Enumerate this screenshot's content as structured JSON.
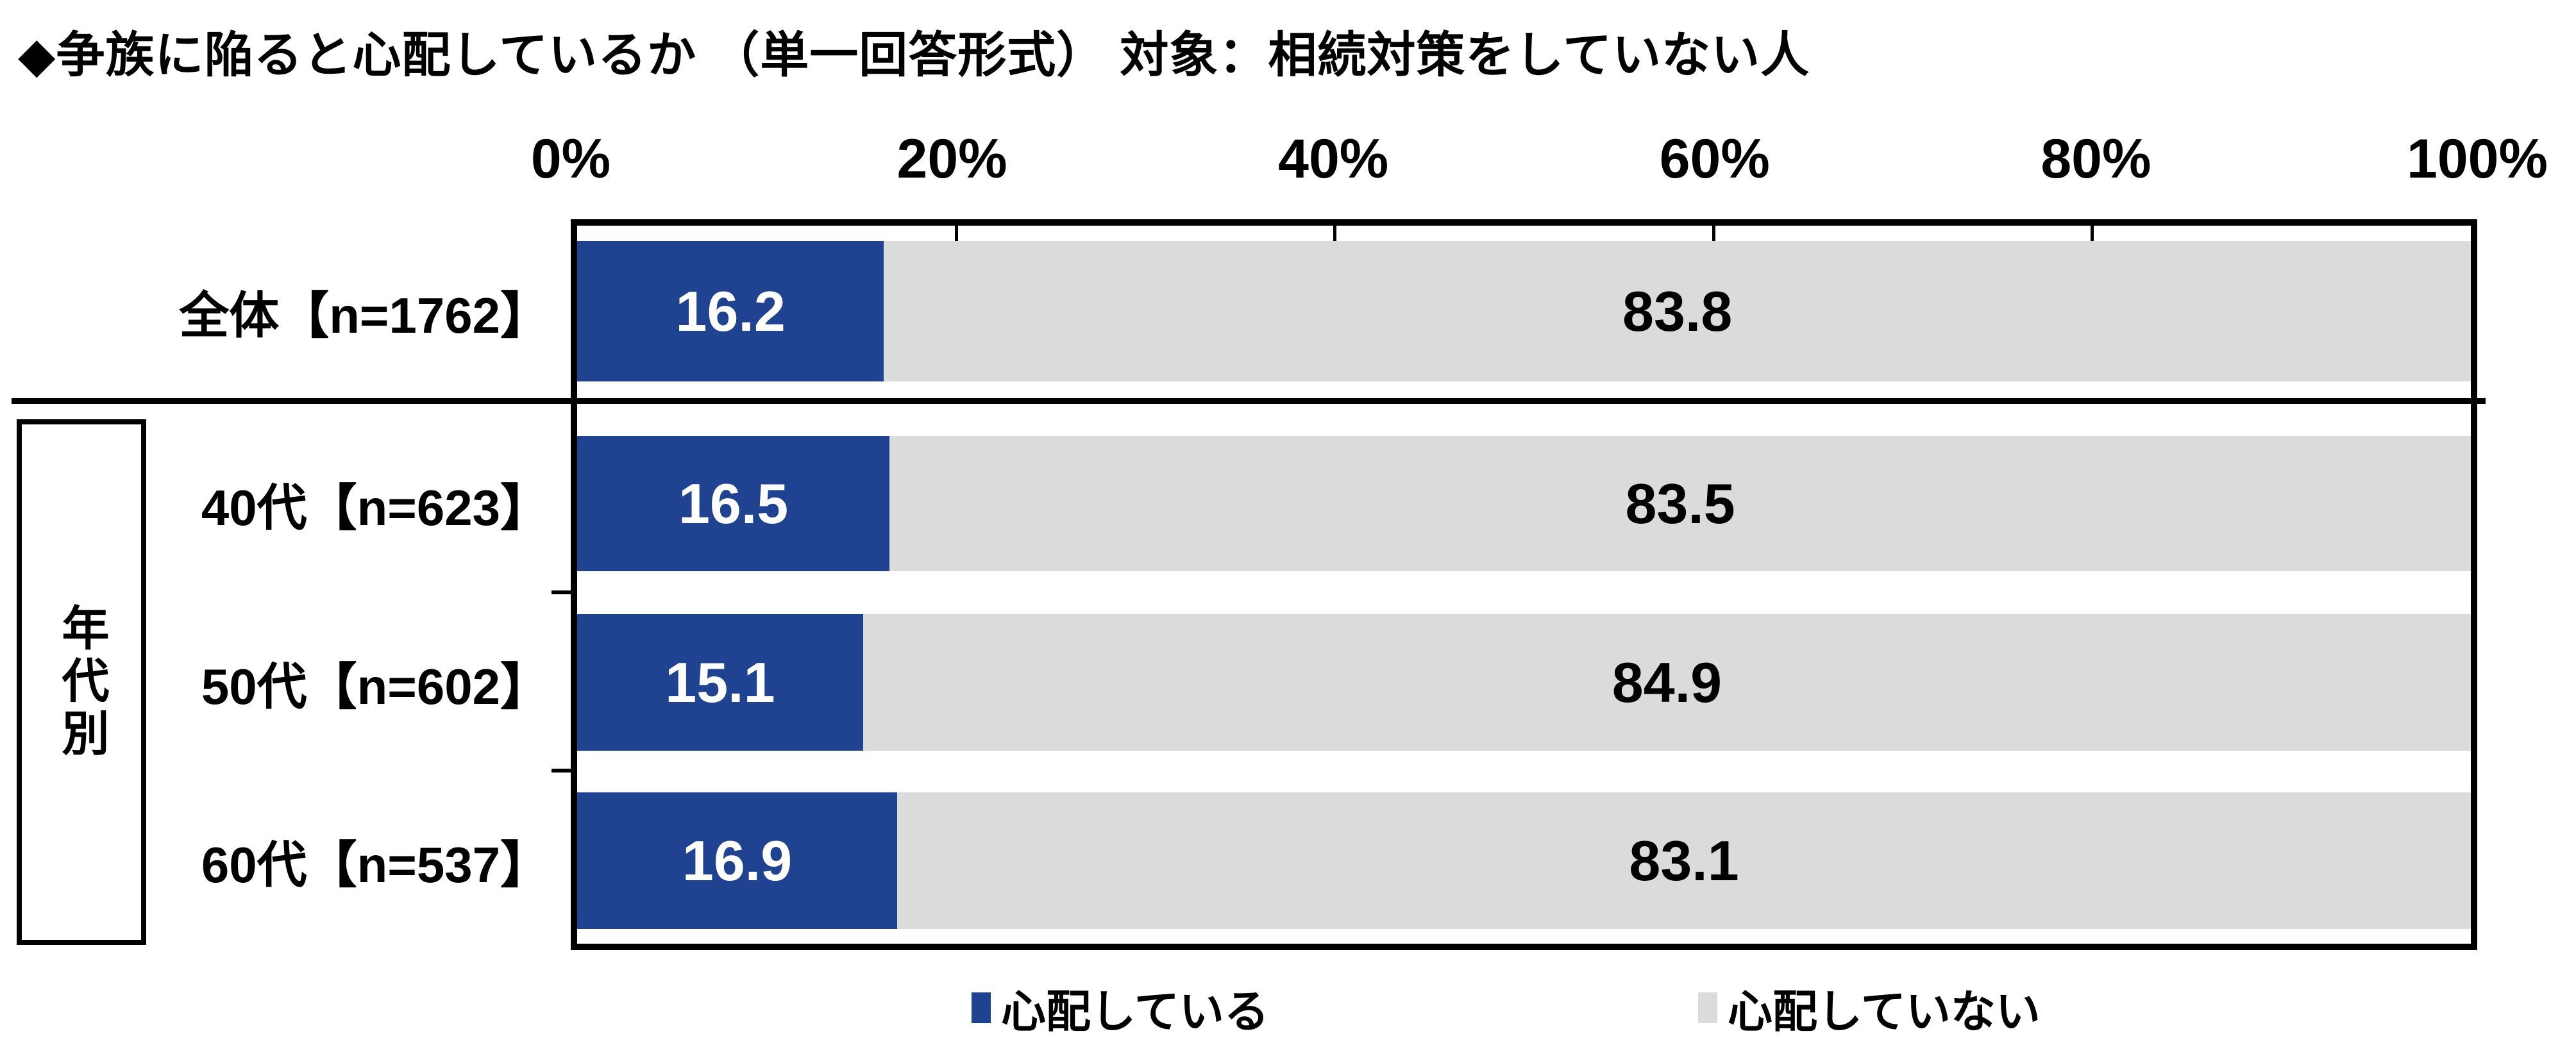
{
  "title": "◆争族に陥ると心配しているか （単一回答形式） 対象：相続対策をしていない人",
  "x_axis": {
    "tick_labels": [
      "0%",
      "20%",
      "40%",
      "60%",
      "80%",
      "100%"
    ],
    "tick_values": [
      0,
      20,
      40,
      60,
      80,
      100
    ]
  },
  "row_group": {
    "label": "年代別"
  },
  "legend": {
    "items": [
      {
        "label": "心配している",
        "color": "#1F4291"
      },
      {
        "label": "心配していない",
        "color": "#DBDBDB"
      }
    ]
  },
  "colors": {
    "worried": "#1F4291",
    "not_worried": "#DBDBDB",
    "worried_text": "#FFFFFF",
    "not_worried_text": "#000000",
    "axis": "#000000"
  },
  "chart_data": {
    "type": "bar",
    "orientation": "horizontal",
    "stacked": true,
    "unit": "%",
    "title": "◆争族に陥ると心配しているか （単一回答形式） 対象：相続対策をしていない人",
    "categories": [
      "全体【n=1762】",
      "40代【n=623】",
      "50代【n=602】",
      "60代【n=537】"
    ],
    "series": [
      {
        "name": "心配している",
        "color": "#1F4291",
        "values": [
          16.2,
          16.5,
          15.1,
          16.9
        ]
      },
      {
        "name": "心配していない",
        "color": "#DBDBDB",
        "values": [
          83.8,
          83.5,
          84.9,
          83.1
        ]
      }
    ],
    "xlim": [
      0,
      100
    ],
    "x_ticks": [
      0,
      20,
      40,
      60,
      80,
      100
    ],
    "grid": false,
    "legend_position": "bottom",
    "value_label_decimals": 1
  }
}
